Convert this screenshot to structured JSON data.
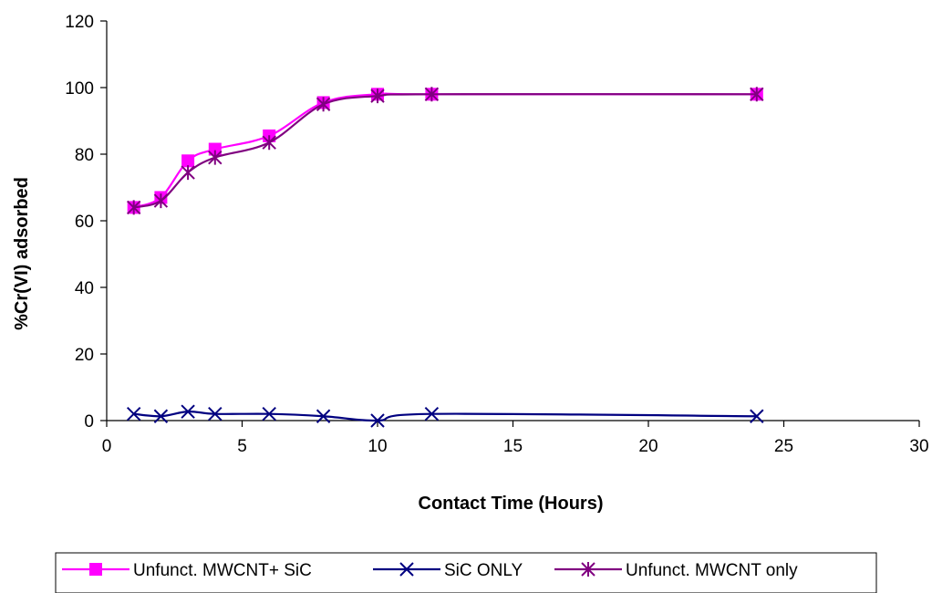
{
  "chart_data": {
    "type": "line",
    "title": "",
    "xlabel": "Contact Time (Hours)",
    "ylabel": "%Cr(VI) adsorbed",
    "xlim": [
      0,
      30
    ],
    "ylim": [
      0,
      120
    ],
    "xticks": [
      0,
      5,
      10,
      15,
      20,
      25,
      30
    ],
    "yticks": [
      0,
      20,
      40,
      60,
      80,
      100,
      120
    ],
    "grid": false,
    "legend_position": "bottom",
    "series": [
      {
        "name": "Unfunct. MWCNT+ SiC",
        "color": "#ff00ff",
        "marker": "square",
        "x": [
          1,
          2,
          3,
          4,
          6,
          8,
          10,
          12,
          24
        ],
        "y": [
          64,
          67,
          78,
          81.5,
          85.5,
          95.5,
          98,
          98,
          98
        ]
      },
      {
        "name": "SiC ONLY",
        "color": "#000080",
        "marker": "x",
        "x": [
          1,
          2,
          3,
          4,
          6,
          8,
          10,
          12,
          24
        ],
        "y": [
          2,
          1.3,
          2.7,
          2,
          2,
          1.3,
          0,
          2,
          1.3
        ]
      },
      {
        "name": "Unfunct. MWCNT only",
        "color": "#800080",
        "marker": "star",
        "x": [
          1,
          2,
          3,
          4,
          6,
          8,
          10,
          12,
          24
        ],
        "y": [
          64,
          66,
          74.5,
          79,
          83.5,
          95,
          97.5,
          98,
          98
        ]
      }
    ]
  }
}
